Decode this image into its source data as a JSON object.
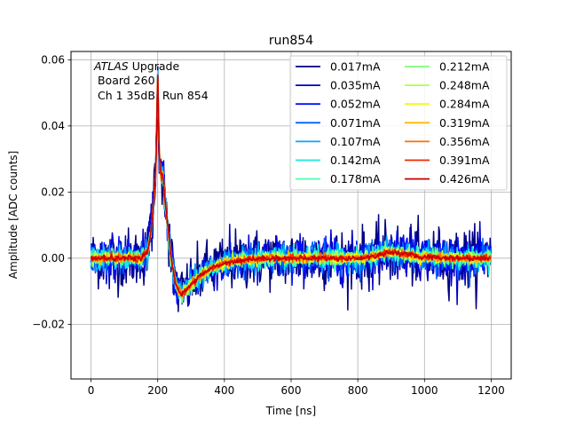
{
  "chart_data": {
    "type": "line",
    "title": "run854",
    "xlabel": "Time [ns]",
    "ylabel": "Amplitude [ADC counts]",
    "xlim": [
      -60,
      1260
    ],
    "ylim": [
      -0.0365,
      0.0625
    ],
    "xticks": [
      0,
      200,
      400,
      600,
      800,
      1000,
      1200
    ],
    "xtick_labels": [
      "0",
      "200",
      "400",
      "600",
      "800",
      "1000",
      "1200"
    ],
    "yticks": [
      -0.02,
      0.0,
      0.02,
      0.04,
      0.06
    ],
    "ytick_labels": [
      "−0.02",
      "0.00",
      "0.02",
      "0.04",
      "0.06"
    ],
    "grid": true,
    "legend_position": "top-right",
    "legend_columns": 2,
    "annotation": {
      "experiment": "ATLAS",
      "experiment_suffix": " Upgrade",
      "line2": " Board 260",
      "line3": " Ch 1 35dB  Run 854"
    },
    "series": [
      {
        "name": "0.017mA",
        "color": "#00007f",
        "noise": 0.0045
      },
      {
        "name": "0.035mA",
        "color": "#0000c8",
        "noise": 0.0035
      },
      {
        "name": "0.052mA",
        "color": "#0010ff",
        "noise": 0.0028
      },
      {
        "name": "0.071mA",
        "color": "#0060ff",
        "noise": 0.0023
      },
      {
        "name": "0.107mA",
        "color": "#00a8ff",
        "noise": 0.0018
      },
      {
        "name": "0.142mA",
        "color": "#18e8e0",
        "noise": 0.0015
      },
      {
        "name": "0.178mA",
        "color": "#4cffaa",
        "noise": 0.0012
      },
      {
        "name": "0.212mA",
        "color": "#7cff7a",
        "noise": 0.001
      },
      {
        "name": "0.248mA",
        "color": "#b0ff46",
        "noise": 0.0009
      },
      {
        "name": "0.284mA",
        "color": "#f2fc0c",
        "noise": 0.0008
      },
      {
        "name": "0.319mA",
        "color": "#ffb800",
        "noise": 0.0007
      },
      {
        "name": "0.356mA",
        "color": "#ff7000",
        "noise": 0.0006
      },
      {
        "name": "0.391mA",
        "color": "#f52800",
        "noise": 0.0005
      },
      {
        "name": "0.426mA",
        "color": "#c80000",
        "noise": 0.0004
      }
    ],
    "mean_pulse": {
      "x": [
        0,
        150,
        170,
        180,
        190,
        195,
        200,
        205,
        210,
        215,
        220,
        230,
        240,
        255,
        270,
        290,
        320,
        360,
        400,
        460,
        520,
        600,
        700,
        800,
        850,
        880,
        910,
        940,
        980,
        1050,
        1120,
        1200
      ],
      "y": [
        0,
        0,
        0.002,
        0.008,
        0.02,
        0.028,
        0.056,
        0.03,
        0.024,
        0.026,
        0.02,
        0.01,
        0.0,
        -0.008,
        -0.011,
        -0.009,
        -0.006,
        -0.003,
        -0.0015,
        -0.0005,
        0,
        0,
        0,
        0,
        0.0005,
        0.0015,
        0.0018,
        0.0012,
        0.0005,
        0.0002,
        0,
        0
      ]
    }
  }
}
